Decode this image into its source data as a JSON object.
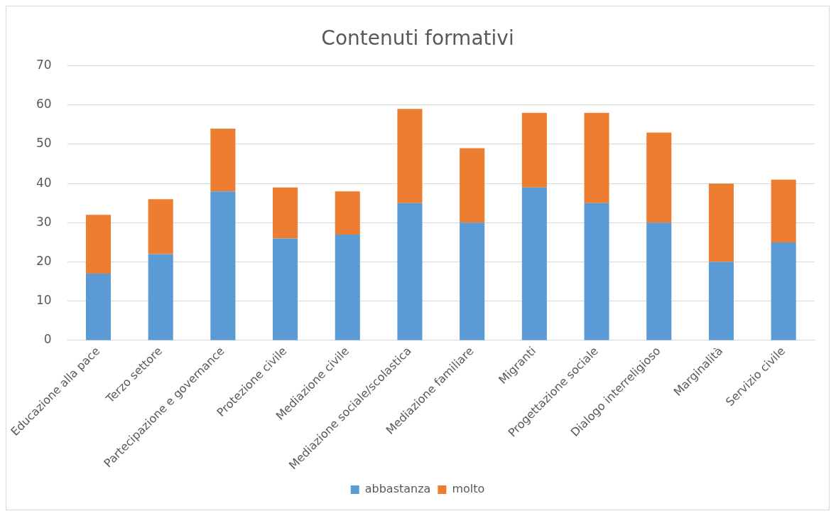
{
  "chart_data": {
    "type": "bar",
    "title": "Contenuti formativi",
    "categories": [
      "Educazione alla pace",
      "Terzo settore",
      "Partecipazione e governance",
      "Protezione civile",
      "Mediazione civile",
      "Mediazione sociale/scolastica",
      "Mediazione familiare",
      "Migranti",
      "Progettazione sociale",
      "Dialogo interreligioso",
      "Marginalità",
      "Servizio civile"
    ],
    "series": [
      {
        "name": "abbastanza",
        "color": "#5b9bd5",
        "values": [
          17,
          22,
          38,
          26,
          27,
          35,
          30,
          39,
          35,
          30,
          20,
          25
        ]
      },
      {
        "name": "molto",
        "color": "#ed7d31",
        "values": [
          15,
          14,
          16,
          13,
          11,
          24,
          19,
          19,
          23,
          23,
          20,
          16
        ]
      }
    ],
    "stacked": true,
    "ylim": [
      0,
      70
    ],
    "yticks": [
      0,
      10,
      20,
      30,
      40,
      50,
      60,
      70
    ],
    "grid": "y",
    "legend": "bottom"
  }
}
